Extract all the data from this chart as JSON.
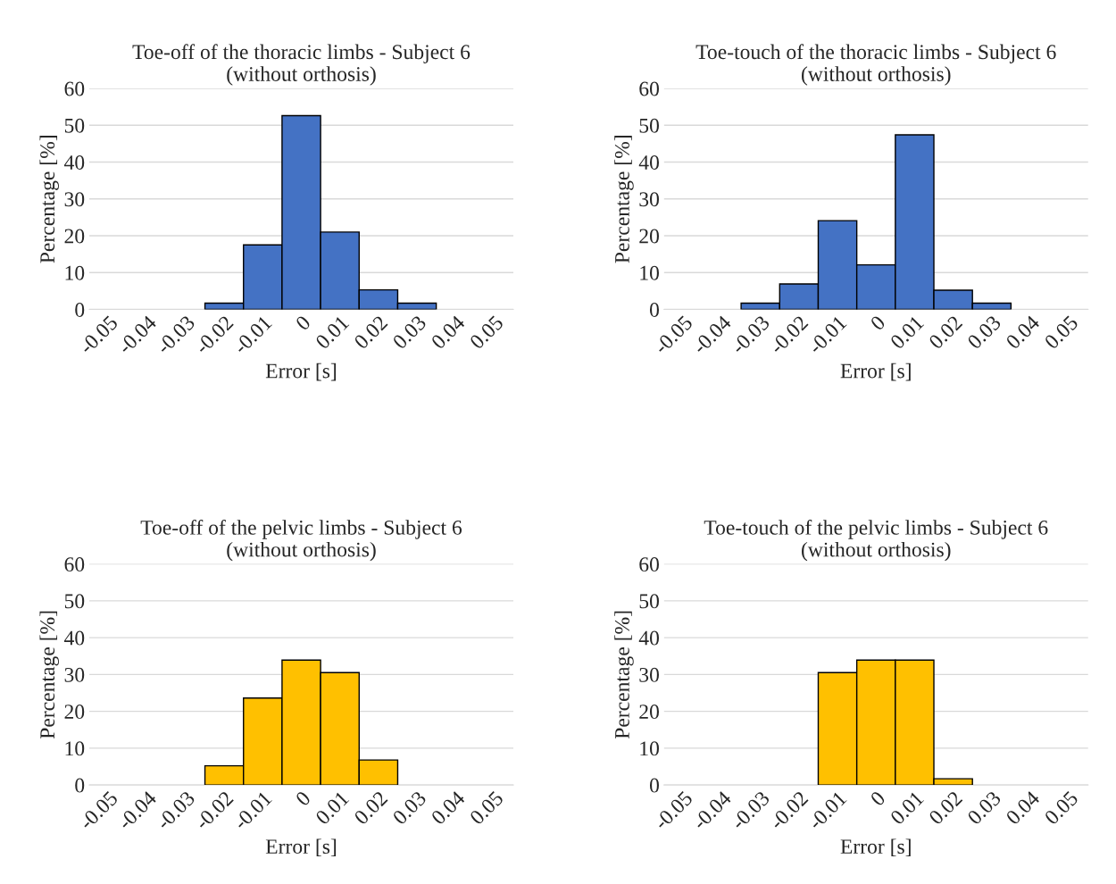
{
  "chart_data": [
    {
      "type": "bar",
      "title": "Toe-off of the thoracic limbs - Subject 6\n(without orthosis)",
      "xlabel": "Error [s]",
      "ylabel": "Percentage [%]",
      "categories": [
        "-0.05",
        "-0.04",
        "-0.03",
        "-0.02",
        "-0.01",
        "0",
        "0.01",
        "0.02",
        "0.03",
        "0.04",
        "0.05"
      ],
      "values": [
        0,
        0,
        0,
        1.7,
        17.5,
        52.6,
        21,
        5.3,
        1.7,
        0,
        0
      ],
      "color": "#4472c4",
      "ylim": [
        0,
        60
      ],
      "yticks": [
        0,
        10,
        20,
        30,
        40,
        50,
        60
      ],
      "grid": "y"
    },
    {
      "type": "bar",
      "title": "Toe-touch of the thoracic limbs - Subject 6\n(without orthosis)",
      "xlabel": "Error [s]",
      "ylabel": "Percentage [%]",
      "categories": [
        "-0.05",
        "-0.04",
        "-0.03",
        "-0.02",
        "-0.01",
        "0",
        "0.01",
        "0.02",
        "0.03",
        "0.04",
        "0.05"
      ],
      "values": [
        0,
        0,
        1.7,
        6.9,
        24.1,
        12.1,
        47.4,
        5.2,
        1.7,
        0,
        0
      ],
      "color": "#4472c4",
      "ylim": [
        0,
        60
      ],
      "yticks": [
        0,
        10,
        20,
        30,
        40,
        50,
        60
      ],
      "grid": "y"
    },
    {
      "type": "bar",
      "title": "Toe-off of the pelvic limbs - Subject 6\n(without orthosis)",
      "xlabel": "Error [s]",
      "ylabel": "Percentage [%]",
      "categories": [
        "-0.05",
        "-0.04",
        "-0.03",
        "-0.02",
        "-0.01",
        "0",
        "0.01",
        "0.02",
        "0.03",
        "0.04",
        "0.05"
      ],
      "values": [
        0,
        0,
        0,
        5.2,
        23.6,
        33.9,
        30.5,
        6.8,
        0,
        0,
        0
      ],
      "color": "#ffc000",
      "ylim": [
        0,
        60
      ],
      "yticks": [
        0,
        10,
        20,
        30,
        40,
        50,
        60
      ],
      "grid": "y"
    },
    {
      "type": "bar",
      "title": "Toe-touch of the pelvic limbs - Subject 6\n(without orthosis)",
      "xlabel": "Error [s]",
      "ylabel": "Percentage [%]",
      "categories": [
        "-0.05",
        "-0.04",
        "-0.03",
        "-0.02",
        "-0.01",
        "0",
        "0.01",
        "0.02",
        "0.03",
        "0.04",
        "0.05"
      ],
      "values": [
        0,
        0,
        0,
        0,
        30.5,
        33.9,
        33.9,
        1.7,
        0,
        0,
        0
      ],
      "color": "#ffc000",
      "ylim": [
        0,
        60
      ],
      "yticks": [
        0,
        10,
        20,
        30,
        40,
        50,
        60
      ],
      "grid": "y"
    }
  ]
}
